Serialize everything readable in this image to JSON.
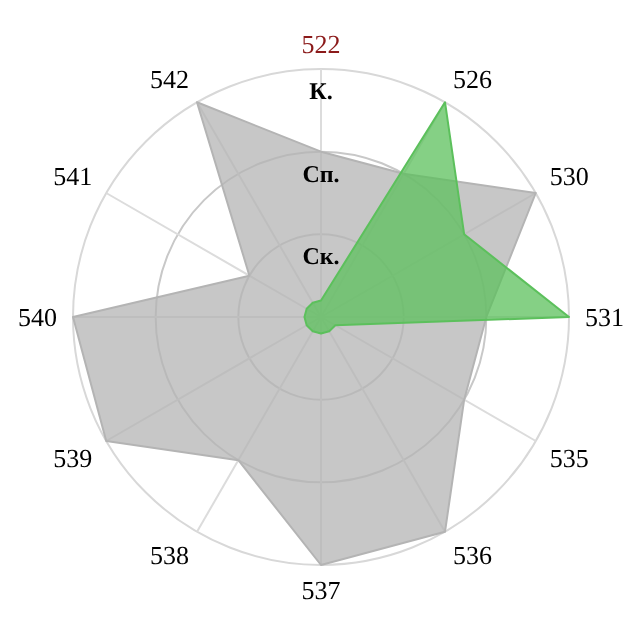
{
  "chart_data": {
    "type": "radar",
    "categories": [
      "522",
      "526",
      "530",
      "531",
      "535",
      "536",
      "537",
      "538",
      "539",
      "540",
      "541",
      "542"
    ],
    "ylim": [
      0,
      3
    ],
    "yticks": [
      {
        "value": 1,
        "label": "Ск."
      },
      {
        "value": 2,
        "label": "Сп."
      },
      {
        "value": 3,
        "label": "К."
      }
    ],
    "grid": true,
    "series": [
      {
        "color": "#b4b4b4",
        "values": [
          2,
          2,
          3,
          2,
          2,
          3,
          3,
          2,
          3,
          3,
          1,
          3
        ]
      },
      {
        "color": "#5cc05c",
        "values": [
          0.2,
          3,
          2,
          3,
          0.2,
          0.2,
          0.2,
          0.2,
          0.2,
          0.2,
          0.2,
          0.2
        ]
      }
    ]
  }
}
